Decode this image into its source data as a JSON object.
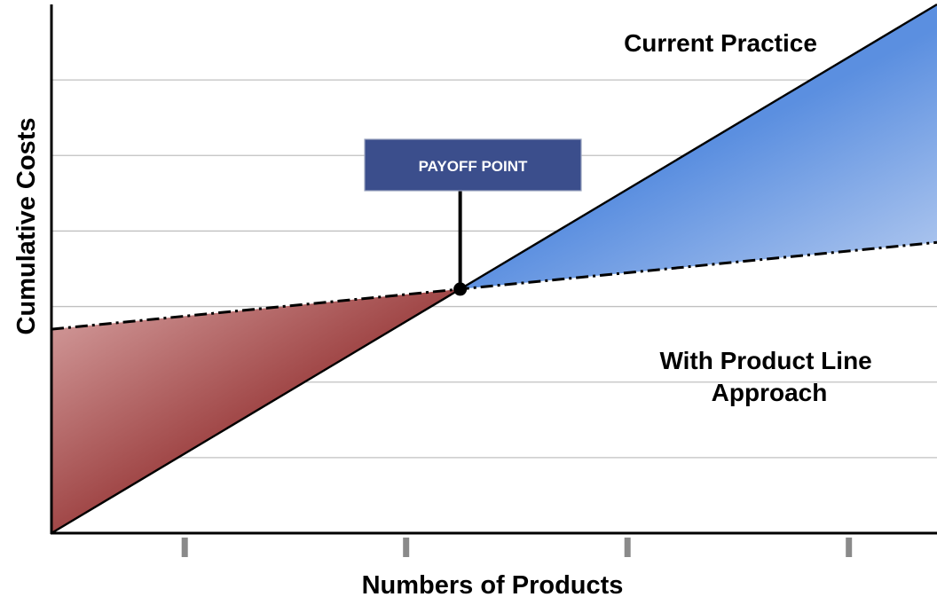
{
  "chart_data": {
    "type": "line",
    "title": "",
    "xlabel": "Numbers of Products",
    "ylabel": "Cumulative Costs",
    "xlim": [
      0,
      10
    ],
    "ylim": [
      0,
      7
    ],
    "grid": true,
    "x_ticks": [
      1.5,
      4,
      6.5,
      9
    ],
    "y_gridlines": [
      1,
      2,
      3,
      4,
      5,
      6
    ],
    "series": [
      {
        "name": "Current Practice",
        "x": [
          0,
          10
        ],
        "y": [
          0,
          7
        ],
        "style": "solid"
      },
      {
        "name": "With Product Line Approach",
        "x": [
          0,
          10
        ],
        "y": [
          2.7,
          3.85
        ],
        "style": "dash-dot"
      }
    ],
    "annotations": [
      {
        "text": "PAYOFF POINT",
        "x": 4.6,
        "y": 3.2
      }
    ],
    "colors": {
      "loss_region": "#8b2323",
      "loss_region_light": "#d7a3a3",
      "gain_region": "#5b8fe0",
      "gain_region_light": "#b8cdf0",
      "callout_fill": "#3b4e8c",
      "gridline": "#c0c0c0",
      "tick": "#8a8a8a"
    }
  }
}
